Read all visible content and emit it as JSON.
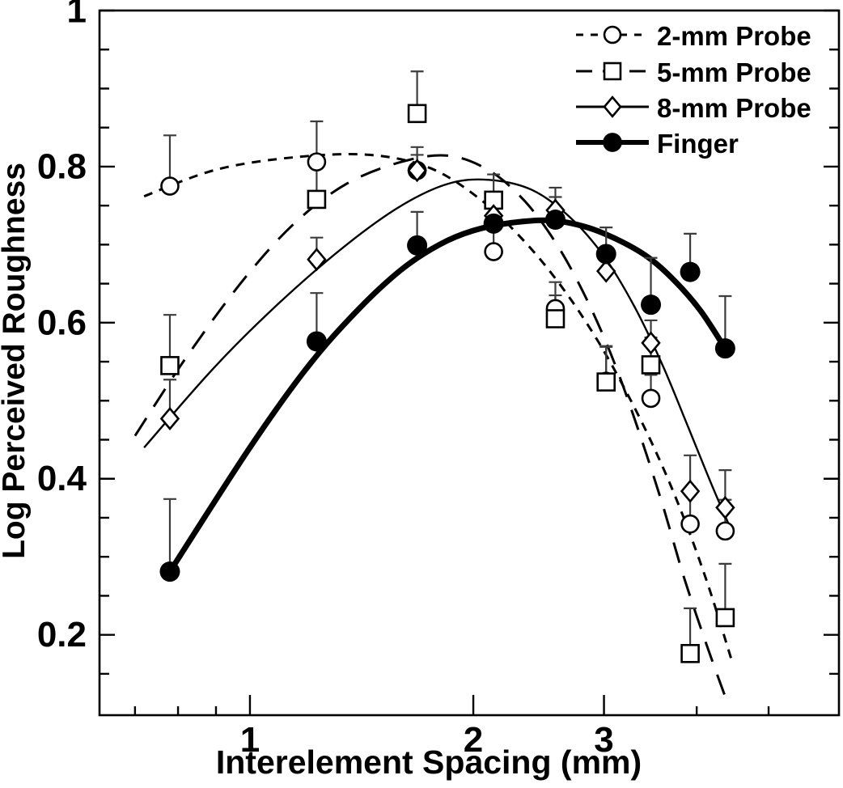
{
  "figure": {
    "background": "#ffffff",
    "ink_color": "#000000",
    "error_bar_color": "#3c3c3c"
  },
  "axes": {
    "x": {
      "label": "Interelement Spacing (mm)",
      "scale": "log",
      "min": 0.627,
      "max": 6.22,
      "major_ticks": [
        1,
        2,
        3
      ],
      "major_tick_labels": [
        "1",
        "2",
        "3"
      ],
      "minor_ticks": [
        0.7,
        0.8,
        0.9,
        4,
        5
      ]
    },
    "y": {
      "label": "Log Perceived Roughness",
      "scale": "linear",
      "min": 0.097,
      "max": 1.0,
      "major_ticks": [
        1.0,
        0.8,
        0.6,
        0.4,
        0.2
      ],
      "major_tick_labels": [
        "1",
        "0.8",
        "0.6",
        "0.4",
        "0.2"
      ],
      "minor_ticks": [
        0.95,
        0.9,
        0.85,
        0.75,
        0.7,
        0.65,
        0.55,
        0.5,
        0.45,
        0.35,
        0.3,
        0.25,
        0.15
      ]
    }
  },
  "chart_data": {
    "type": "scatter",
    "note": "scatter points with one-sided upward error bars and smooth fitted curves; x axis logarithmic",
    "x": [
      0.78,
      1.23,
      1.68,
      2.13,
      2.58,
      3.02,
      3.47,
      3.92,
      4.37
    ],
    "legend_position": "top-right",
    "grid": false,
    "series": [
      {
        "name": "2-mm Probe",
        "marker": "open-circle",
        "line": "short-dash",
        "values": [
          0.775,
          0.806,
          0.795,
          0.691,
          0.618,
          0.525,
          0.503,
          0.342,
          0.333
        ],
        "err_up": [
          0.065,
          0.052,
          0.03,
          0.03,
          0.034,
          0.045,
          0.03,
          0.04,
          0.04
        ],
        "fit_curve": [
          [
            0.72,
            0.762
          ],
          [
            0.9,
            0.796
          ],
          [
            1.15,
            0.812
          ],
          [
            1.45,
            0.815
          ],
          [
            1.75,
            0.798
          ],
          [
            2.05,
            0.757
          ],
          [
            2.35,
            0.703
          ],
          [
            2.65,
            0.642
          ],
          [
            2.95,
            0.575
          ],
          [
            3.25,
            0.503
          ],
          [
            3.55,
            0.428
          ],
          [
            3.85,
            0.348
          ],
          [
            4.15,
            0.262
          ],
          [
            4.45,
            0.17
          ]
        ]
      },
      {
        "name": "5-mm Probe",
        "marker": "open-square",
        "line": "long-dash",
        "values": [
          0.545,
          0.758,
          0.868,
          0.757,
          0.605,
          0.524,
          0.546,
          0.176,
          0.222
        ],
        "err_up": [
          0.065,
          0.05,
          0.054,
          0.033,
          0.03,
          0.045,
          0.035,
          0.058,
          0.069
        ],
        "fit_curve": [
          [
            0.7,
            0.455
          ],
          [
            0.82,
            0.555
          ],
          [
            0.98,
            0.655
          ],
          [
            1.15,
            0.728
          ],
          [
            1.35,
            0.778
          ],
          [
            1.6,
            0.806
          ],
          [
            1.85,
            0.814
          ],
          [
            2.1,
            0.795
          ],
          [
            2.35,
            0.755
          ],
          [
            2.6,
            0.698
          ],
          [
            2.85,
            0.628
          ],
          [
            3.1,
            0.548
          ],
          [
            3.35,
            0.458
          ],
          [
            3.6,
            0.366
          ],
          [
            3.85,
            0.272
          ],
          [
            4.15,
            0.18
          ],
          [
            4.42,
            0.108
          ]
        ]
      },
      {
        "name": "8-mm Probe",
        "marker": "open-diamond",
        "line": "thin-solid",
        "values": [
          0.477,
          0.681,
          0.795,
          0.737,
          0.744,
          0.666,
          0.574,
          0.384,
          0.363
        ],
        "err_up": [
          0.05,
          0.028,
          0.02,
          0.025,
          0.029,
          0.03,
          0.029,
          0.046,
          0.048
        ],
        "fit_curve": [
          [
            0.72,
            0.44
          ],
          [
            0.9,
            0.545
          ],
          [
            1.1,
            0.627
          ],
          [
            1.35,
            0.7
          ],
          [
            1.6,
            0.75
          ],
          [
            1.85,
            0.778
          ],
          [
            2.1,
            0.783
          ],
          [
            2.4,
            0.77
          ],
          [
            2.7,
            0.735
          ],
          [
            3.0,
            0.685
          ],
          [
            3.3,
            0.62
          ],
          [
            3.6,
            0.545
          ],
          [
            3.9,
            0.465
          ],
          [
            4.2,
            0.39
          ],
          [
            4.45,
            0.335
          ]
        ]
      },
      {
        "name": "Finger",
        "marker": "filled-circle",
        "line": "thick-solid",
        "values": [
          0.281,
          0.576,
          0.699,
          0.727,
          0.732,
          0.688,
          0.623,
          0.665,
          0.567
        ],
        "err_up": [
          0.093,
          0.062,
          0.043,
          0.04,
          0.029,
          0.034,
          0.06,
          0.049,
          0.067
        ],
        "fit_curve": [
          [
            0.78,
            0.281
          ],
          [
            1.0,
            0.44
          ],
          [
            1.2,
            0.545
          ],
          [
            1.4,
            0.617
          ],
          [
            1.6,
            0.668
          ],
          [
            1.8,
            0.7
          ],
          [
            2.0,
            0.718
          ],
          [
            2.25,
            0.728
          ],
          [
            2.55,
            0.731
          ],
          [
            2.85,
            0.722
          ],
          [
            3.15,
            0.705
          ],
          [
            3.45,
            0.683
          ],
          [
            3.75,
            0.652
          ],
          [
            4.05,
            0.615
          ],
          [
            4.37,
            0.567
          ]
        ]
      }
    ]
  }
}
